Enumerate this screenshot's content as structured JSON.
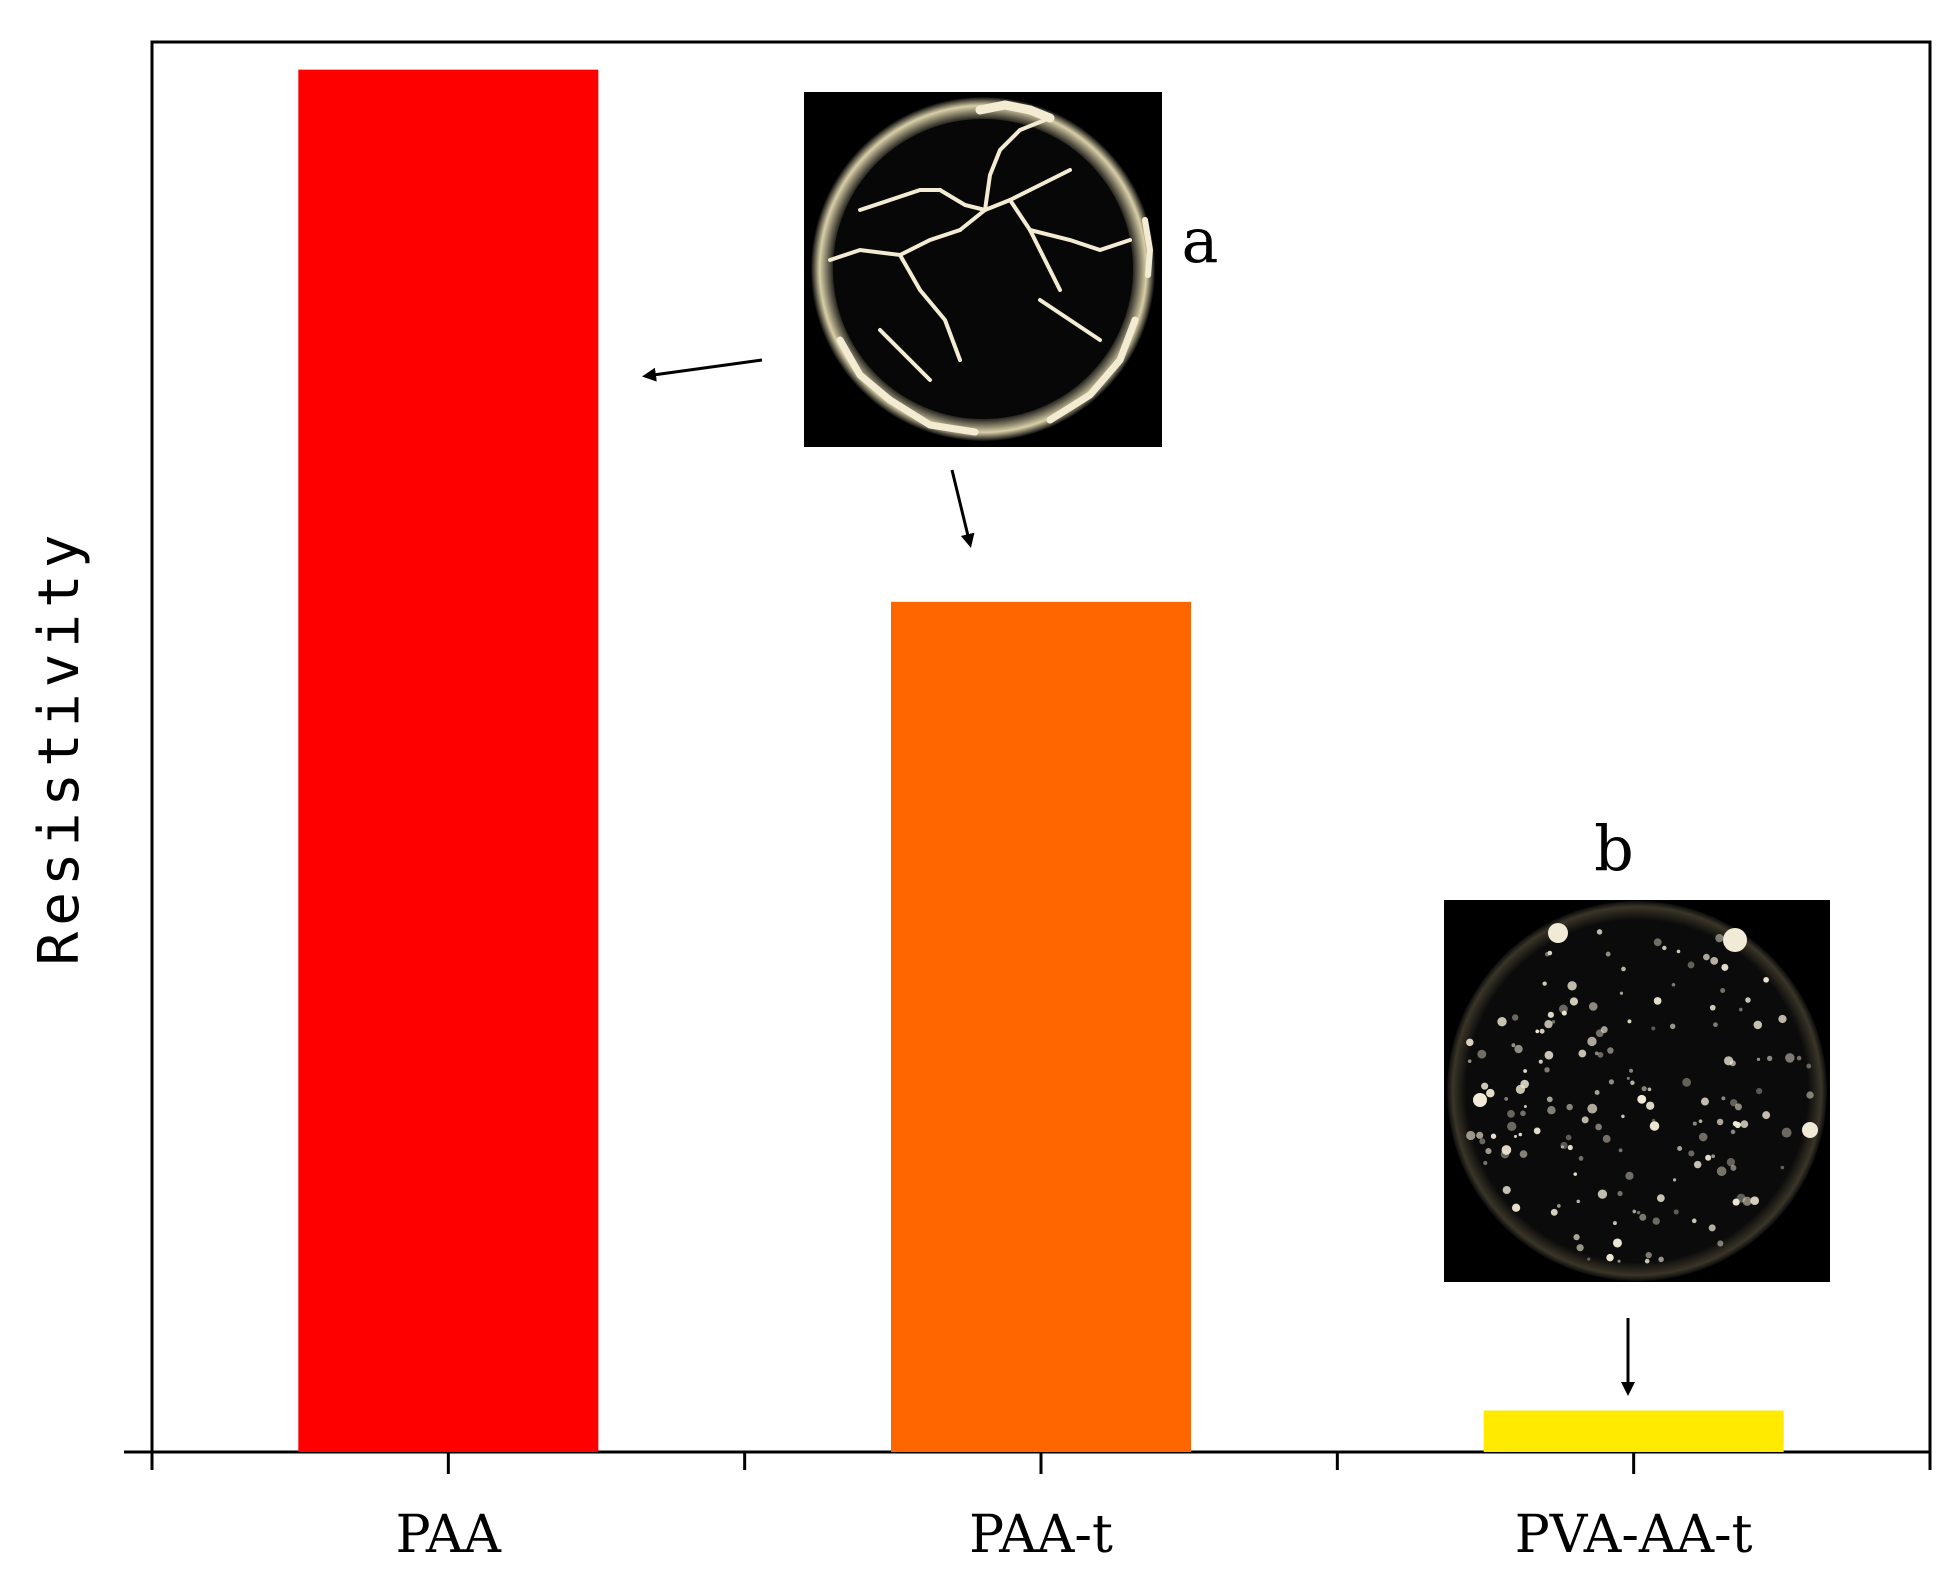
{
  "chart_data": {
    "type": "bar",
    "title": "",
    "xlabel": "",
    "ylabel": "Resistivity",
    "categories": [
      "PAA",
      "PAA-t",
      "PVA-AA-t"
    ],
    "values": [
      100,
      61.5,
      3
    ],
    "ylim": [
      0,
      102
    ],
    "bar_colors": [
      "#ff0000",
      "#ff6600",
      "#ffea00"
    ],
    "grid": false,
    "y_tick_labels_shown": false,
    "insets": [
      {
        "label": "a",
        "description_icon": "micrograph-cracked-icon"
      },
      {
        "label": "b",
        "description_icon": "micrograph-dispersed-icon"
      }
    ]
  }
}
